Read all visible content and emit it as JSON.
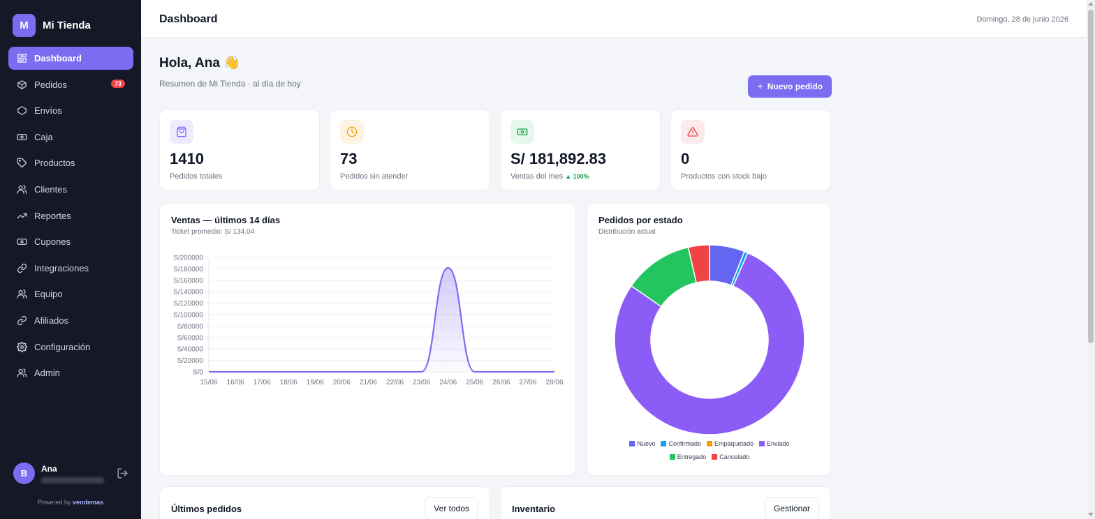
{
  "brand": {
    "logo_letter": "M",
    "name": "Mi Tienda"
  },
  "nav": {
    "items": [
      {
        "label": "Dashboard",
        "icon": "dashboard-icon",
        "active": true
      },
      {
        "label": "Pedidos",
        "icon": "box-icon",
        "badge": "73"
      },
      {
        "label": "Envíos",
        "icon": "hexagon-icon"
      },
      {
        "label": "Caja",
        "icon": "cash-icon"
      },
      {
        "label": "Productos",
        "icon": "tag-icon"
      },
      {
        "label": "Clientes",
        "icon": "users-icon"
      },
      {
        "label": "Reportes",
        "icon": "trending-up-icon"
      },
      {
        "label": "Cupones",
        "icon": "ticket-icon"
      },
      {
        "label": "Integraciones",
        "icon": "link-icon"
      },
      {
        "label": "Equipo",
        "icon": "users-icon"
      },
      {
        "label": "Afiliados",
        "icon": "link-icon"
      },
      {
        "label": "Configuración",
        "icon": "gear-icon"
      },
      {
        "label": "Admin",
        "icon": "users-icon"
      }
    ]
  },
  "user": {
    "initial": "B",
    "name": "Ana"
  },
  "powered": {
    "prefix": "Powered by",
    "brand": "vendemas"
  },
  "topbar": {
    "title": "Dashboard",
    "date": "Domingo, 28 de junio 2026"
  },
  "greeting": {
    "title": "Hola, Ana 👋",
    "subtitle": "Resumen de Mi Tienda · al día de hoy",
    "new_order_label": "Nuevo pedido"
  },
  "stats": [
    {
      "value": "1410",
      "label": "Pedidos totales",
      "icon": "shopping-bag-icon",
      "color": "#7c6cf2",
      "bg": "#efeafd"
    },
    {
      "value": "73",
      "label": "Pedidos sin atender",
      "icon": "clock-icon",
      "color": "#f59e0b",
      "bg": "#fdf3e2"
    },
    {
      "value": "S/ 181,892.83",
      "label": "Ventas del mes",
      "trend": "▲ 100%",
      "icon": "cash-icon",
      "color": "#16a34a",
      "bg": "#e6f7ec"
    },
    {
      "value": "0",
      "label": "Productos con stock bajo",
      "icon": "alert-icon",
      "color": "#ef4444",
      "bg": "#fdeaea"
    }
  ],
  "sales_panel": {
    "title": "Ventas — últimos 14 días",
    "subtitle": "Ticket promedio: S/ 134.04"
  },
  "status_panel": {
    "title": "Pedidos por estado",
    "subtitle": "Distribución actual"
  },
  "chart_data": [
    {
      "type": "area",
      "x": [
        "15/06",
        "16/06",
        "17/06",
        "18/06",
        "19/06",
        "20/06",
        "21/06",
        "22/06",
        "23/06",
        "24/06",
        "25/06",
        "26/06",
        "27/06",
        "28/06"
      ],
      "values": [
        0,
        0,
        0,
        0,
        0,
        0,
        0,
        0,
        0,
        181892.83,
        0,
        0,
        0,
        0
      ],
      "yticks": [
        "S/0",
        "S/20000",
        "S/40000",
        "S/60000",
        "S/80000",
        "S/100000",
        "S/120000",
        "S/140000",
        "S/160000",
        "S/180000",
        "S/200000"
      ],
      "ylim": [
        0,
        200000
      ],
      "grid": true,
      "color": "#7c6cf2"
    },
    {
      "type": "pie",
      "donut": true,
      "legend": "bottom",
      "slices": [
        {
          "name": "Nuevo",
          "value": 6,
          "color": "#6366f1"
        },
        {
          "name": "Confirmado",
          "value": 0.6,
          "color": "#0ea5e9"
        },
        {
          "name": "Empaquetado",
          "value": 0,
          "color": "#f59e0b"
        },
        {
          "name": "Enviado",
          "value": 78,
          "color": "#8b5cf6"
        },
        {
          "name": "Entregado",
          "value": 11.8,
          "color": "#22c55e"
        },
        {
          "name": "Cancelado",
          "value": 3.6,
          "color": "#ef4444"
        }
      ]
    }
  ],
  "orders_panel": {
    "title": "Últimos pedidos",
    "button": "Ver todos"
  },
  "inventory_panel": {
    "title": "Inventario",
    "button": "Gestionar"
  }
}
